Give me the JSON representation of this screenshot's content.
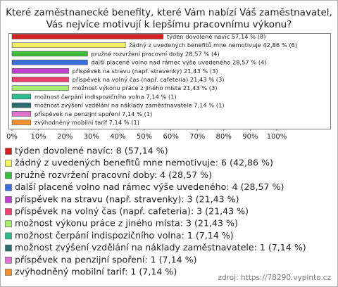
{
  "chart_data": {
    "type": "bar",
    "orientation": "horizontal",
    "title": [
      "Které zaměstnanecké benefity, které Vám nabízí Váš zaměstnavatel,",
      "Vás nejvíce motivují  k lepšímu pracovnímu výkonu?"
    ],
    "categories": [
      "týden dovolené navíc",
      "žádný z uvedených benefitů mne nemotivuje",
      "pružné rozvržení pracovní doby",
      "další placené volno nad rámec výše uvedeného",
      "příspěvek na stravu (např. stravenky)",
      "příspěvek na volný čas (např. cafeteria)",
      "možnost výkonu práce z jiného místa",
      "možnost čerpání indispozičního volna",
      "možnost zvýšení vzdělání na náklady zaměstnavatele",
      "příspěvek na penzijní spoření",
      "zvýhodněný mobilní tarif"
    ],
    "values": [
      57.14,
      42.86,
      28.57,
      28.57,
      21.43,
      21.43,
      21.43,
      7.14,
      7.14,
      7.14,
      7.14
    ],
    "value_labels": [
      "57,14 % (8)",
      "42,86 % (6)",
      "28,57 % (4)",
      "28,57 % (4)",
      "21,43 % (3)",
      "21,43 % (3)",
      "21,43 % (3)",
      "7,14 % (1)",
      "7,14 % (1)",
      "7,14 % (1)",
      "7,14 % (1)"
    ],
    "colors": [
      "#d42020",
      "#f4f060",
      "#3cbc3c",
      "#3a6ee0",
      "#c040d0",
      "#f04070",
      "#a8ec70",
      "#30b890",
      "#2e6e6e",
      "#e070d0",
      "#f09030"
    ],
    "legend_labels": [
      "týden dovolené navíc: 8 (57,14 %)",
      "žádný z uvedených benefitů mne nemotivuje: 6 (42,86 %)",
      "pružné rozvržení pracovní doby: 4 (28,57 %)",
      "další placené volno nad rámec výše uvedeného: 4 (28,57 %)",
      "příspěvek na stravu (např. stravenky): 3 (21,43 %)",
      "příspěvek na volný čas (např. cafeteria): 3 (21,43 %)",
      "možnost výkonu práce z jiného místa: 3 (21,43 %)",
      "možnost čerpání indispozičního volna: 1 (7,14 %)",
      "možnost zvýšení vzdělání na náklady zaměstnavatele: 1 (7,14 %)",
      "příspěvek na penzijní spoření: 1 (7,14 %)",
      "zvýhodněný mobilní tarif: 1 (7,14 %)"
    ],
    "xlim": [
      0,
      100
    ],
    "xticks": [
      {
        "value": 0,
        "label": "0%"
      },
      {
        "value": 10,
        "label": "10%"
      },
      {
        "value": 20,
        "label": "20%"
      },
      {
        "value": 30,
        "label": "30%"
      },
      {
        "value": 40,
        "label": "40%"
      },
      {
        "value": 50,
        "label": "50%"
      },
      {
        "value": 60,
        "label": "60%"
      },
      {
        "value": 70,
        "label": "70%"
      },
      {
        "value": 80,
        "label": "80%"
      },
      {
        "value": 90,
        "label": "90%"
      },
      {
        "value": 100,
        "label": "100%"
      }
    ],
    "source": "zdroj: https://78290.vyplnto.cz"
  }
}
